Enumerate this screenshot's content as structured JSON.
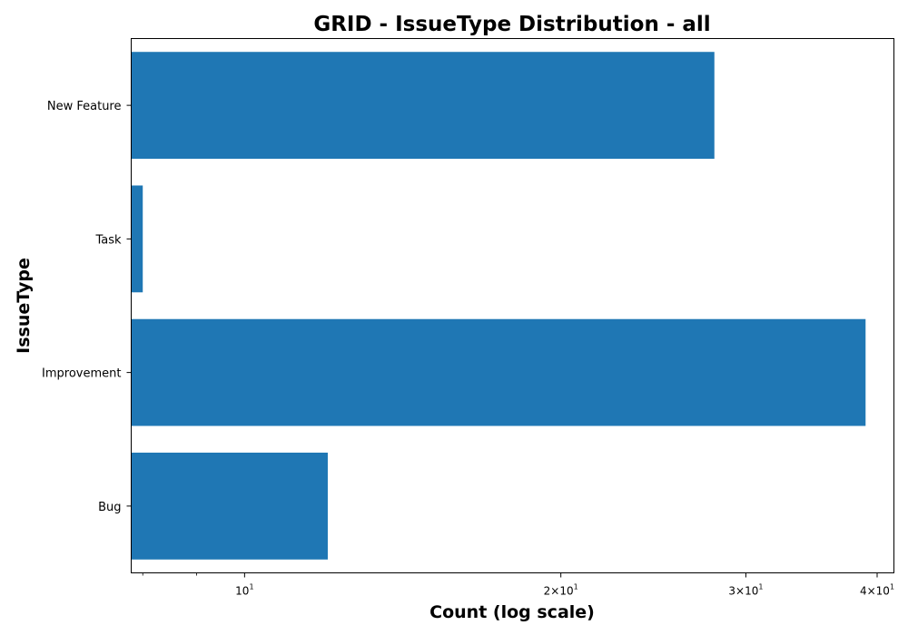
{
  "chart_data": {
    "type": "bar",
    "orientation": "horizontal",
    "title": "GRID - IssueType Distribution - all",
    "xlabel": "Count (log scale)",
    "ylabel": "IssueType",
    "xscale": "log",
    "xlim": [
      7.8,
      41.5
    ],
    "categories": [
      "Bug",
      "Improvement",
      "Task",
      "New Feature"
    ],
    "values": [
      12,
      39,
      8,
      28
    ],
    "bar_color": "#1f77b4",
    "x_major_ticks": [
      {
        "value": 10,
        "base": "10",
        "exp": "1"
      },
      {
        "value": 20,
        "base": "2×10",
        "exp": "1"
      },
      {
        "value": 30,
        "base": "3×10",
        "exp": "1"
      },
      {
        "value": 40,
        "base": "4×10",
        "exp": "1"
      }
    ],
    "x_minor_ticks": [
      8,
      9
    ],
    "grid": false
  }
}
